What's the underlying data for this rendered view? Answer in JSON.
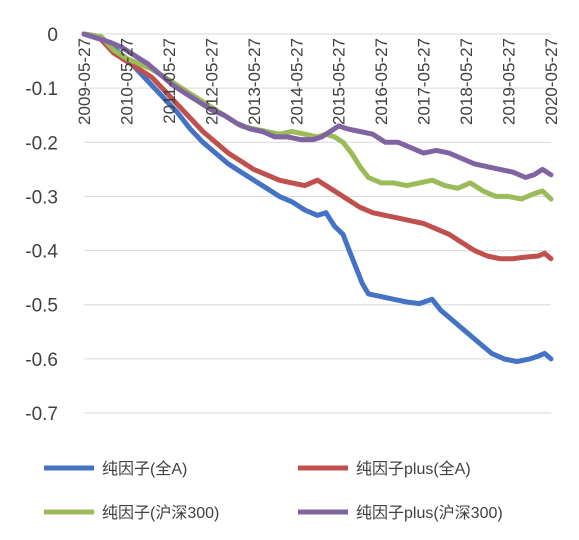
{
  "chart_data": {
    "type": "line",
    "title": "",
    "xlabel": "",
    "ylabel": "",
    "ylim": [
      -0.7,
      0
    ],
    "yticks": [
      0,
      -0.1,
      -0.2,
      -0.3,
      -0.4,
      -0.5,
      -0.6,
      -0.7
    ],
    "ytick_labels": [
      "0",
      "-0.1",
      "-0.2",
      "-0.3",
      "-0.4",
      "-0.5",
      "-0.6",
      "-0.7"
    ],
    "xlim": [
      2009.4,
      2020.4
    ],
    "grid": true,
    "legend_position": "bottom",
    "xtick_labels": [
      "2009-05-27",
      "2010-05-27",
      "2011-05-27",
      "2012-05-27",
      "2013-05-27",
      "2014-05-27",
      "2015-05-27",
      "2016-05-27",
      "2017-05-27",
      "2018-05-27",
      "2019-05-27",
      "2020-05-27"
    ],
    "xtick_values": [
      2009.4,
      2010.4,
      2011.4,
      2012.4,
      2013.4,
      2014.4,
      2015.4,
      2016.4,
      2017.4,
      2018.4,
      2019.4,
      2020.4
    ],
    "series": [
      {
        "name": "纯因子(全A)",
        "color": "#4472C4",
        "points": [
          [
            2009.4,
            0
          ],
          [
            2009.8,
            -0.005
          ],
          [
            2010.0,
            -0.02
          ],
          [
            2010.4,
            -0.045
          ],
          [
            2010.7,
            -0.07
          ],
          [
            2011.0,
            -0.095
          ],
          [
            2011.3,
            -0.12
          ],
          [
            2011.6,
            -0.145
          ],
          [
            2011.9,
            -0.175
          ],
          [
            2012.2,
            -0.2
          ],
          [
            2012.5,
            -0.22
          ],
          [
            2012.8,
            -0.24
          ],
          [
            2013.1,
            -0.255
          ],
          [
            2013.4,
            -0.27
          ],
          [
            2013.7,
            -0.285
          ],
          [
            2014.0,
            -0.3
          ],
          [
            2014.3,
            -0.31
          ],
          [
            2014.6,
            -0.325
          ],
          [
            2014.9,
            -0.335
          ],
          [
            2015.1,
            -0.33
          ],
          [
            2015.3,
            -0.355
          ],
          [
            2015.5,
            -0.37
          ],
          [
            2015.65,
            -0.4
          ],
          [
            2015.8,
            -0.43
          ],
          [
            2015.95,
            -0.46
          ],
          [
            2016.1,
            -0.48
          ],
          [
            2016.4,
            -0.485
          ],
          [
            2016.7,
            -0.49
          ],
          [
            2017.0,
            -0.495
          ],
          [
            2017.3,
            -0.498
          ],
          [
            2017.6,
            -0.49
          ],
          [
            2017.8,
            -0.51
          ],
          [
            2018.1,
            -0.53
          ],
          [
            2018.4,
            -0.55
          ],
          [
            2018.7,
            -0.57
          ],
          [
            2019.0,
            -0.59
          ],
          [
            2019.3,
            -0.6
          ],
          [
            2019.6,
            -0.605
          ],
          [
            2019.9,
            -0.6
          ],
          [
            2020.1,
            -0.595
          ],
          [
            2020.25,
            -0.59
          ],
          [
            2020.4,
            -0.6
          ]
        ]
      },
      {
        "name": "纯因子plus(全A)",
        "color": "#C0504D",
        "points": [
          [
            2009.4,
            0
          ],
          [
            2009.8,
            -0.01
          ],
          [
            2010.1,
            -0.035
          ],
          [
            2010.4,
            -0.05
          ],
          [
            2010.7,
            -0.065
          ],
          [
            2011.0,
            -0.08
          ],
          [
            2011.3,
            -0.105
          ],
          [
            2011.6,
            -0.13
          ],
          [
            2011.9,
            -0.155
          ],
          [
            2012.2,
            -0.18
          ],
          [
            2012.5,
            -0.2
          ],
          [
            2012.8,
            -0.22
          ],
          [
            2013.1,
            -0.235
          ],
          [
            2013.4,
            -0.25
          ],
          [
            2013.7,
            -0.26
          ],
          [
            2014.0,
            -0.27
          ],
          [
            2014.3,
            -0.275
          ],
          [
            2014.6,
            -0.28
          ],
          [
            2014.9,
            -0.27
          ],
          [
            2015.1,
            -0.28
          ],
          [
            2015.3,
            -0.29
          ],
          [
            2015.6,
            -0.305
          ],
          [
            2015.9,
            -0.32
          ],
          [
            2016.2,
            -0.33
          ],
          [
            2016.5,
            -0.335
          ],
          [
            2016.8,
            -0.34
          ],
          [
            2017.1,
            -0.345
          ],
          [
            2017.4,
            -0.35
          ],
          [
            2017.7,
            -0.36
          ],
          [
            2018.0,
            -0.37
          ],
          [
            2018.3,
            -0.385
          ],
          [
            2018.6,
            -0.4
          ],
          [
            2018.9,
            -0.41
          ],
          [
            2019.2,
            -0.415
          ],
          [
            2019.5,
            -0.415
          ],
          [
            2019.8,
            -0.412
          ],
          [
            2020.1,
            -0.41
          ],
          [
            2020.25,
            -0.405
          ],
          [
            2020.4,
            -0.415
          ]
        ]
      },
      {
        "name": "纯因子(沪深300)",
        "color": "#9BBB59",
        "points": [
          [
            2009.4,
            0
          ],
          [
            2009.8,
            -0.005
          ],
          [
            2010.1,
            -0.03
          ],
          [
            2010.4,
            -0.045
          ],
          [
            2010.7,
            -0.055
          ],
          [
            2011.0,
            -0.065
          ],
          [
            2011.3,
            -0.08
          ],
          [
            2011.6,
            -0.095
          ],
          [
            2011.9,
            -0.11
          ],
          [
            2012.2,
            -0.125
          ],
          [
            2012.5,
            -0.14
          ],
          [
            2012.8,
            -0.155
          ],
          [
            2013.1,
            -0.17
          ],
          [
            2013.4,
            -0.175
          ],
          [
            2013.7,
            -0.18
          ],
          [
            2014.0,
            -0.185
          ],
          [
            2014.3,
            -0.18
          ],
          [
            2014.6,
            -0.185
          ],
          [
            2014.9,
            -0.19
          ],
          [
            2015.1,
            -0.185
          ],
          [
            2015.3,
            -0.19
          ],
          [
            2015.5,
            -0.2
          ],
          [
            2015.7,
            -0.22
          ],
          [
            2015.9,
            -0.245
          ],
          [
            2016.1,
            -0.265
          ],
          [
            2016.4,
            -0.275
          ],
          [
            2016.7,
            -0.275
          ],
          [
            2017.0,
            -0.28
          ],
          [
            2017.3,
            -0.275
          ],
          [
            2017.6,
            -0.27
          ],
          [
            2017.9,
            -0.28
          ],
          [
            2018.2,
            -0.285
          ],
          [
            2018.5,
            -0.275
          ],
          [
            2018.8,
            -0.29
          ],
          [
            2019.1,
            -0.3
          ],
          [
            2019.4,
            -0.3
          ],
          [
            2019.7,
            -0.305
          ],
          [
            2020.0,
            -0.295
          ],
          [
            2020.2,
            -0.29
          ],
          [
            2020.4,
            -0.305
          ]
        ]
      },
      {
        "name": "纯因子plus(沪深300)",
        "color": "#8064A2",
        "points": [
          [
            2009.4,
            0
          ],
          [
            2009.8,
            -0.01
          ],
          [
            2010.0,
            -0.015
          ],
          [
            2010.3,
            -0.025
          ],
          [
            2010.6,
            -0.04
          ],
          [
            2010.9,
            -0.055
          ],
          [
            2011.2,
            -0.075
          ],
          [
            2011.5,
            -0.095
          ],
          [
            2011.8,
            -0.11
          ],
          [
            2012.1,
            -0.125
          ],
          [
            2012.4,
            -0.14
          ],
          [
            2012.7,
            -0.15
          ],
          [
            2013.0,
            -0.165
          ],
          [
            2013.3,
            -0.175
          ],
          [
            2013.6,
            -0.18
          ],
          [
            2013.9,
            -0.19
          ],
          [
            2014.2,
            -0.19
          ],
          [
            2014.5,
            -0.195
          ],
          [
            2014.8,
            -0.195
          ],
          [
            2015.0,
            -0.19
          ],
          [
            2015.2,
            -0.18
          ],
          [
            2015.4,
            -0.17
          ],
          [
            2015.6,
            -0.175
          ],
          [
            2015.9,
            -0.18
          ],
          [
            2016.2,
            -0.185
          ],
          [
            2016.5,
            -0.2
          ],
          [
            2016.8,
            -0.2
          ],
          [
            2017.1,
            -0.21
          ],
          [
            2017.4,
            -0.22
          ],
          [
            2017.7,
            -0.215
          ],
          [
            2018.0,
            -0.22
          ],
          [
            2018.3,
            -0.23
          ],
          [
            2018.6,
            -0.24
          ],
          [
            2018.9,
            -0.245
          ],
          [
            2019.2,
            -0.25
          ],
          [
            2019.5,
            -0.255
          ],
          [
            2019.8,
            -0.265
          ],
          [
            2020.0,
            -0.26
          ],
          [
            2020.2,
            -0.25
          ],
          [
            2020.4,
            -0.26
          ]
        ]
      }
    ]
  }
}
